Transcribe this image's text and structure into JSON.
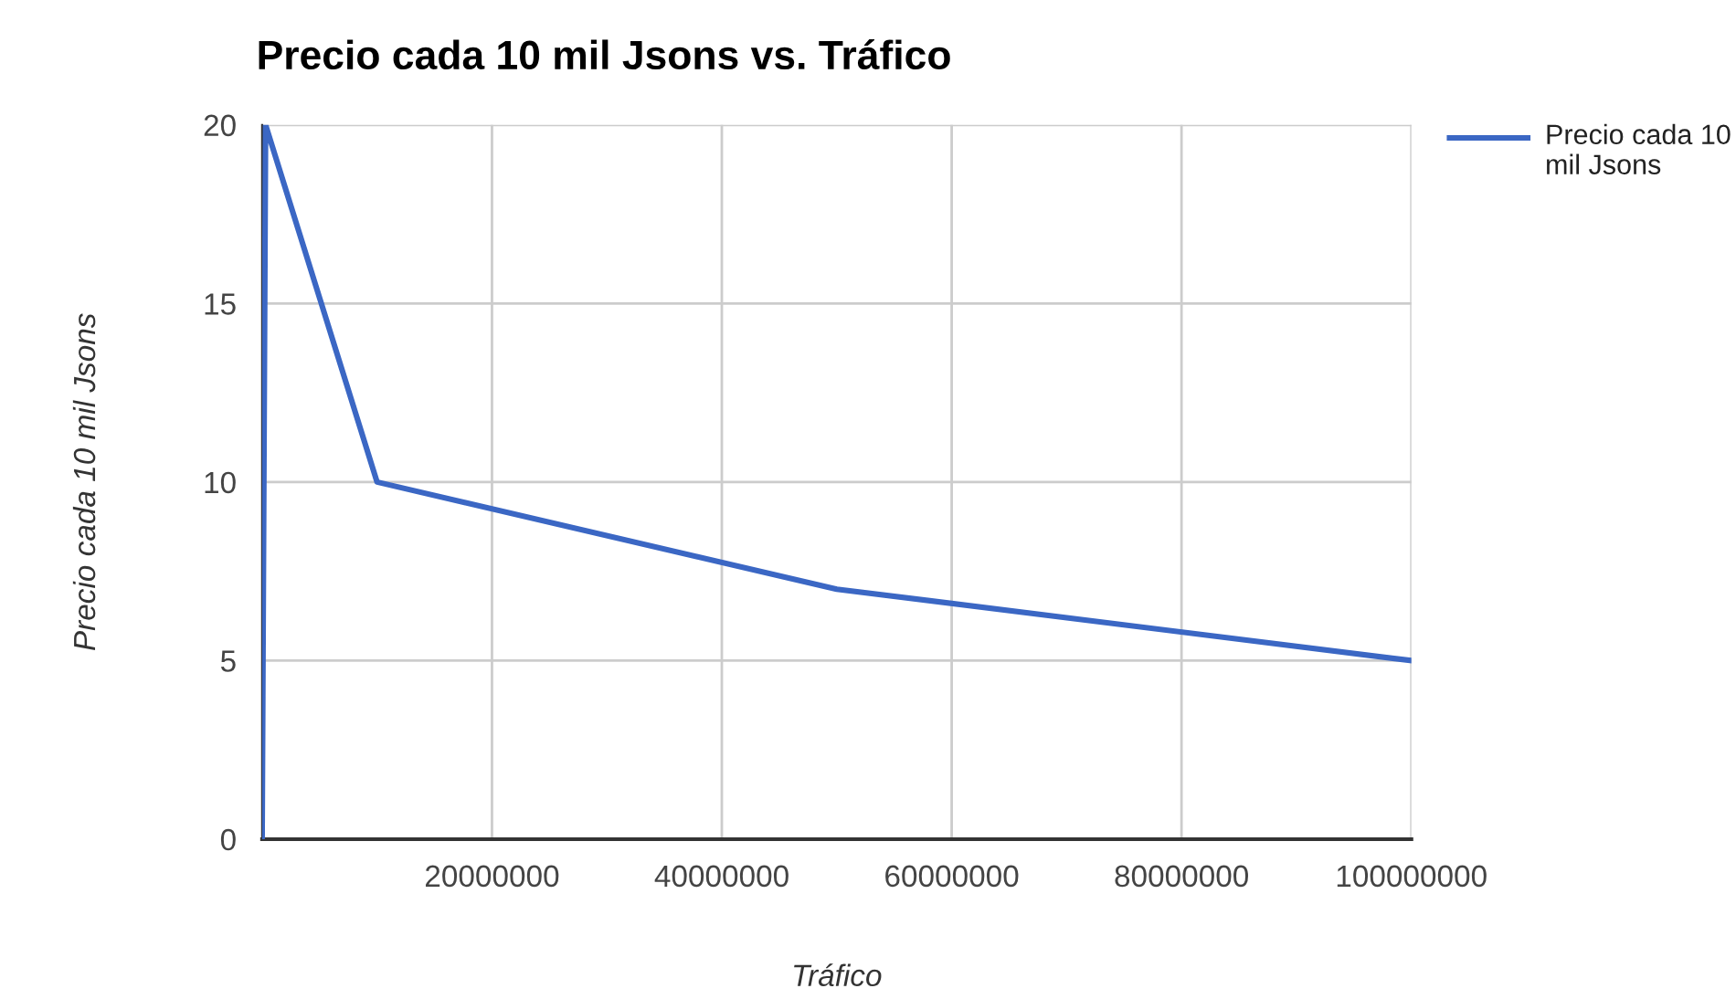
{
  "chart_data": {
    "type": "line",
    "title": "Precio cada 10 mil Jsons vs. Tráfico",
    "xlabel": "Tráfico",
    "ylabel": "Precio cada 10 mil Jsons",
    "series": [
      {
        "name": "Precio cada 10 mil Jsons",
        "color": "#3b67c4",
        "x": [
          0,
          300000,
          10000000,
          50000000,
          100000000
        ],
        "values": [
          0,
          20,
          10,
          7,
          5
        ]
      }
    ],
    "xlim": [
      0,
      100000000
    ],
    "xticks": [
      20000000,
      40000000,
      60000000,
      80000000,
      100000000
    ],
    "ylim": [
      0,
      20
    ],
    "yticks": [
      0,
      5,
      10,
      15,
      20
    ],
    "grid": true,
    "legend": "top right",
    "marker": "none",
    "line_style": "solid"
  }
}
